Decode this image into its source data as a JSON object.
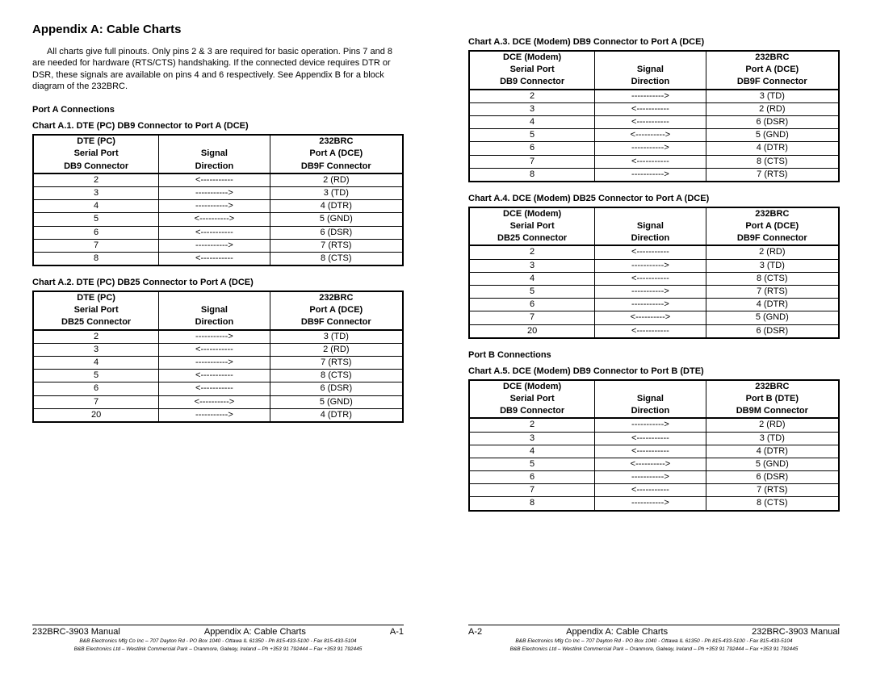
{
  "title": "Appendix A:  Cable Charts",
  "intro": "All charts give full pinouts. Only pins 2 & 3 are required for basic operation. Pins 7 and 8 are needed for hardware (RTS/CTS) handshaking. If the connected device requires DTR or DSR, these signals are available on pins 4 and 6 respectively. See Appendix B for a block diagram of the 232BRC.",
  "section_a": "Port A Connections",
  "section_b": "Port B Connections",
  "arrows": {
    "right": "----------->",
    "left": "<-----------",
    "both": "<---------->"
  },
  "tables": {
    "a1": {
      "title": "Chart A.1.  DTE (PC) DB9 Connector to Port A (DCE)",
      "head1": [
        "DTE (PC)",
        "",
        "232BRC"
      ],
      "head2": [
        "Serial Port",
        "Signal",
        "Port A (DCE)"
      ],
      "head3": [
        "DB9 Connector",
        "Direction",
        "DB9F Connector"
      ],
      "rows": [
        [
          "2",
          "left",
          "2 (RD)"
        ],
        [
          "3",
          "right",
          "3 (TD)"
        ],
        [
          "4",
          "right",
          "4 (DTR)"
        ],
        [
          "5",
          "both",
          "5 (GND)"
        ],
        [
          "6",
          "left",
          "6 (DSR)"
        ],
        [
          "7",
          "right",
          "7 (RTS)"
        ],
        [
          "8",
          "left",
          "8 (CTS)"
        ]
      ]
    },
    "a2": {
      "title": "Chart A.2.  DTE (PC) DB25 Connector to Port A (DCE)",
      "head1": [
        "DTE (PC)",
        "",
        "232BRC"
      ],
      "head2": [
        "Serial Port",
        "Signal",
        "Port A (DCE)"
      ],
      "head3": [
        "DB25 Connector",
        "Direction",
        "DB9F Connector"
      ],
      "rows": [
        [
          "2",
          "right",
          "3 (TD)"
        ],
        [
          "3",
          "left",
          "2 (RD)"
        ],
        [
          "4",
          "right",
          "7 (RTS)"
        ],
        [
          "5",
          "left",
          "8 (CTS)"
        ],
        [
          "6",
          "left",
          "6 (DSR)"
        ],
        [
          "7",
          "both",
          "5 (GND)"
        ],
        [
          "20",
          "right",
          "4 (DTR)"
        ]
      ]
    },
    "a3": {
      "title": "Chart A.3.  DCE (Modem) DB9 Connector to Port A (DCE)",
      "head1": [
        "DCE (Modem)",
        "",
        "232BRC"
      ],
      "head2": [
        "Serial Port",
        "Signal",
        "Port A (DCE)"
      ],
      "head3": [
        "DB9 Connector",
        "Direction",
        "DB9F Connector"
      ],
      "rows": [
        [
          "2",
          "right",
          "3 (TD)"
        ],
        [
          "3",
          "left",
          "2 (RD)"
        ],
        [
          "4",
          "left",
          "6 (DSR)"
        ],
        [
          "5",
          "both",
          "5 (GND)"
        ],
        [
          "6",
          "right",
          "4 (DTR)"
        ],
        [
          "7",
          "left",
          "8 (CTS)"
        ],
        [
          "8",
          "right",
          "7 (RTS)"
        ]
      ]
    },
    "a4": {
      "title": "Chart A.4.  DCE (Modem) DB25 Connector to Port A (DCE)",
      "head1": [
        "DCE (Modem)",
        "",
        "232BRC"
      ],
      "head2": [
        "Serial Port",
        "Signal",
        "Port A (DCE)"
      ],
      "head3": [
        "DB25 Connector",
        "Direction",
        "DB9F Connector"
      ],
      "rows": [
        [
          "2",
          "left",
          "2 (RD)"
        ],
        [
          "3",
          "right",
          "3 (TD)"
        ],
        [
          "4",
          "left",
          "8 (CTS)"
        ],
        [
          "5",
          "right",
          "7 (RTS)"
        ],
        [
          "6",
          "right",
          "4 (DTR)"
        ],
        [
          "7",
          "both",
          "5 (GND)"
        ],
        [
          "20",
          "left",
          "6 (DSR)"
        ]
      ]
    },
    "a5": {
      "title": "Chart A.5.  DCE (Modem) DB9 Connector to Port B (DTE)",
      "head1": [
        "DCE (Modem)",
        "",
        "232BRC"
      ],
      "head2": [
        "Serial Port",
        "Signal",
        "Port B (DTE)"
      ],
      "head3": [
        "DB9 Connector",
        "Direction",
        "DB9M Connector"
      ],
      "rows": [
        [
          "2",
          "right",
          "2 (RD)"
        ],
        [
          "3",
          "left",
          "3 (TD)"
        ],
        [
          "4",
          "left",
          "4 (DTR)"
        ],
        [
          "5",
          "both",
          "5 (GND)"
        ],
        [
          "6",
          "right",
          "6 (DSR)"
        ],
        [
          "7",
          "left",
          "7 (RTS)"
        ],
        [
          "8",
          "right",
          "8 (CTS)"
        ]
      ]
    }
  },
  "footer": {
    "manual": "232BRC-3903 Manual",
    "appendix": "Appendix A:  Cable Charts",
    "p1": "A-1",
    "p2": "A-2",
    "tiny1": "B&B Electronics Mfg Co Inc – 707 Dayton Rd - PO Box 1040 - Ottawa IL 61350 - Ph 815-433-5100 - Fax 815-433-5104",
    "tiny2": "B&B Electronics Ltd – Westlink Commercial  Park – Oranmore, Galway, Ireland – Ph +353 91 792444 – Fax +353 91 792445"
  }
}
